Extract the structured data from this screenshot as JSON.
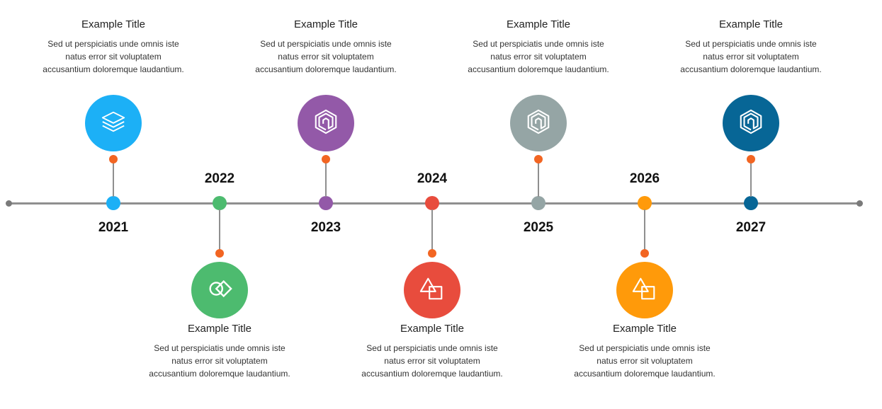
{
  "items": [
    {
      "year": "2021",
      "title": "Example Title",
      "text": "Sed ut perspiciatis unde omnis iste natus error sit voluptatem accusantium doloremque laudantium.",
      "color": "#1cb0f6",
      "icon": "layers-icon",
      "side": "top"
    },
    {
      "year": "2022",
      "title": "Example Title",
      "text": "Sed ut perspiciatis unde omnis iste natus error sit voluptatem accusantium doloremque laudantium.",
      "color": "#4dbb6f",
      "icon": "overlap-shapes-icon",
      "side": "bottom"
    },
    {
      "year": "2023",
      "title": "Example Title",
      "text": "Sed ut perspiciatis unde omnis iste natus error sit voluptatem accusantium doloremque laudantium.",
      "color": "#9359a8",
      "icon": "spiral-hexagon-icon",
      "side": "top"
    },
    {
      "year": "2024",
      "title": "Example Title",
      "text": "Sed ut perspiciatis unde omnis iste natus error sit voluptatem accusantium doloremque laudantium.",
      "color": "#e84c3d",
      "icon": "triangle-square-icon",
      "side": "bottom"
    },
    {
      "year": "2025",
      "title": "Example Title",
      "text": "Sed ut perspiciatis unde omnis iste natus error sit voluptatem accusantium doloremque laudantium.",
      "color": "#95a5a5",
      "icon": "spiral-hexagon-icon",
      "side": "top"
    },
    {
      "year": "2026",
      "title": "Example Title",
      "text": "Sed ut perspiciatis unde omnis iste natus error sit voluptatem accusantium doloremque laudantium.",
      "color": "#ff9a0a",
      "icon": "triangle-square-icon",
      "side": "bottom"
    },
    {
      "year": "2027",
      "title": "Example Title",
      "text": "Sed ut perspiciatis unde omnis iste natus error sit voluptatem accusantium doloremque laudantium.",
      "color": "#076696",
      "icon": "spiral-hexagon-icon",
      "side": "top"
    }
  ],
  "connector_dot_color": "#f26522"
}
